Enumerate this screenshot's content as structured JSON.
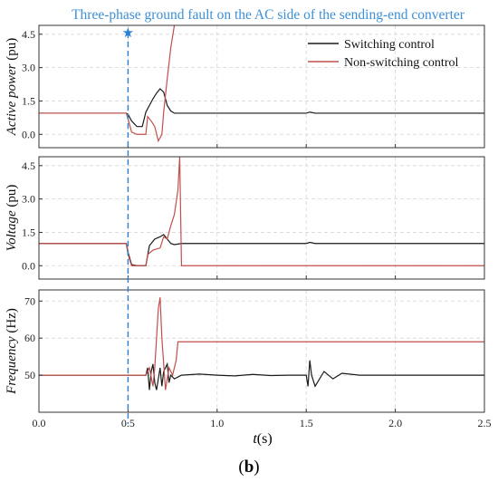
{
  "figure": {
    "annotation": "Three-phase ground fault on the AC side of the sending-end converter",
    "xlabel_var": "t",
    "xlabel_unit": "(s)",
    "caption_letter": "b",
    "fault_time": 0.5,
    "colors": {
      "switching": "#1a1a1a",
      "non_switching": "#c0504d",
      "annotation": "#3d8fd6",
      "marker": "#2b7fd4",
      "grid": "#d6d6d6"
    }
  },
  "chart_data": [
    {
      "type": "line",
      "ylabel": "Active power",
      "yunit": "(pu)",
      "xlim": [
        0,
        2.5
      ],
      "ylim": [
        -0.6,
        4.9
      ],
      "xticks": [
        0.0,
        0.5,
        1.0,
        1.5,
        2.0,
        2.5
      ],
      "xticklabels": [
        "",
        "",
        "",
        "",
        "",
        ""
      ],
      "yticks": [
        0.0,
        1.5,
        3.0,
        4.5
      ],
      "yticklabels": [
        "0.0",
        "1.5",
        "3.0",
        "4.5"
      ],
      "grid": true,
      "legend_position": "top-right",
      "series": [
        {
          "name": "Switching control",
          "key": "switching",
          "x": [
            0,
            0.49,
            0.5,
            0.52,
            0.55,
            0.58,
            0.6,
            0.62,
            0.64,
            0.66,
            0.68,
            0.7,
            0.72,
            0.74,
            0.76,
            0.8,
            1.0,
            1.5,
            1.52,
            1.55,
            2.0,
            2.5
          ],
          "y": [
            0.95,
            0.95,
            0.9,
            0.6,
            0.35,
            0.35,
            1.0,
            1.3,
            1.6,
            1.85,
            2.05,
            1.9,
            1.3,
            1.05,
            0.95,
            0.95,
            0.95,
            0.95,
            1.0,
            0.95,
            0.95,
            0.95
          ]
        },
        {
          "name": "Non-switching control",
          "key": "non_switching",
          "x": [
            0,
            0.49,
            0.5,
            0.52,
            0.55,
            0.6,
            0.61,
            0.63,
            0.65,
            0.67,
            0.69,
            0.7,
            0.72,
            0.74,
            0.76
          ],
          "y": [
            0.95,
            0.95,
            0.7,
            0.1,
            0.0,
            0.0,
            0.8,
            0.6,
            0.35,
            -0.3,
            0.0,
            1.0,
            2.5,
            3.9,
            4.9
          ]
        }
      ]
    },
    {
      "type": "line",
      "ylabel": "Voltage",
      "yunit": "(pu)",
      "xlim": [
        0,
        2.5
      ],
      "ylim": [
        -0.6,
        4.9
      ],
      "xticks": [
        0.0,
        0.5,
        1.0,
        1.5,
        2.0,
        2.5
      ],
      "xticklabels": [
        "",
        "",
        "",
        "",
        "",
        ""
      ],
      "yticks": [
        0.0,
        1.5,
        3.0,
        4.5
      ],
      "yticklabels": [
        "0.0",
        "1.5",
        "3.0",
        "4.5"
      ],
      "grid": true,
      "series": [
        {
          "name": "Switching control",
          "key": "switching",
          "x": [
            0,
            0.49,
            0.5,
            0.52,
            0.55,
            0.6,
            0.62,
            0.65,
            0.68,
            0.7,
            0.72,
            0.74,
            0.76,
            0.8,
            1.0,
            1.5,
            1.52,
            1.55,
            2.0,
            2.5
          ],
          "y": [
            1.0,
            1.0,
            0.6,
            0.05,
            0.0,
            0.0,
            0.9,
            1.2,
            1.3,
            1.4,
            1.2,
            1.0,
            0.95,
            1.0,
            1.0,
            1.0,
            1.05,
            1.0,
            1.0,
            1.0
          ]
        },
        {
          "name": "Non-switching control",
          "key": "non_switching",
          "x": [
            0,
            0.49,
            0.5,
            0.52,
            0.55,
            0.6,
            0.61,
            0.64,
            0.68,
            0.7,
            0.72,
            0.74,
            0.76,
            0.78,
            0.79,
            0.8,
            1.0,
            2.5
          ],
          "y": [
            1.0,
            1.0,
            0.5,
            0.0,
            0.0,
            0.0,
            0.5,
            0.7,
            0.8,
            1.3,
            1.2,
            1.8,
            2.3,
            3.4,
            4.9,
            0.0,
            0.0,
            0.0
          ]
        }
      ]
    },
    {
      "type": "line",
      "ylabel": "Frequency",
      "yunit": "(Hz)",
      "xlim": [
        0,
        2.5
      ],
      "ylim": [
        40,
        73
      ],
      "xticks": [
        0.0,
        0.5,
        1.0,
        1.5,
        2.0,
        2.5
      ],
      "xticklabels": [
        "0.0",
        "0.5",
        "1.0",
        "1.5",
        "2.0",
        "2.5"
      ],
      "yticks": [
        50,
        60,
        70
      ],
      "yticklabels": [
        "50",
        "60",
        "70"
      ],
      "grid": true,
      "series": [
        {
          "name": "Switching control",
          "key": "switching",
          "x": [
            0,
            0.6,
            0.61,
            0.62,
            0.63,
            0.64,
            0.65,
            0.66,
            0.68,
            0.69,
            0.7,
            0.72,
            0.73,
            0.74,
            0.76,
            0.8,
            0.9,
            1.0,
            1.1,
            1.2,
            1.3,
            1.4,
            1.5,
            1.51,
            1.52,
            1.53,
            1.55,
            1.6,
            1.65,
            1.7,
            1.8,
            2.0,
            2.5
          ],
          "y": [
            50,
            50,
            52,
            46,
            51,
            53,
            48,
            46,
            52,
            47,
            51,
            53,
            48,
            50,
            49,
            50,
            50.3,
            50,
            49.8,
            50.2,
            49.9,
            50,
            50,
            47,
            54,
            50,
            47,
            51,
            49,
            50.5,
            50,
            50,
            50
          ]
        },
        {
          "name": "Non-switching control",
          "key": "non_switching",
          "x": [
            0,
            0.6,
            0.62,
            0.64,
            0.65,
            0.67,
            0.68,
            0.69,
            0.71,
            0.73,
            0.75,
            0.77,
            0.78,
            0.8,
            1.0,
            2.5
          ],
          "y": [
            50,
            50,
            52,
            47,
            52,
            68,
            71,
            60,
            46,
            52,
            50,
            54,
            59,
            59,
            59,
            59
          ]
        }
      ]
    }
  ]
}
